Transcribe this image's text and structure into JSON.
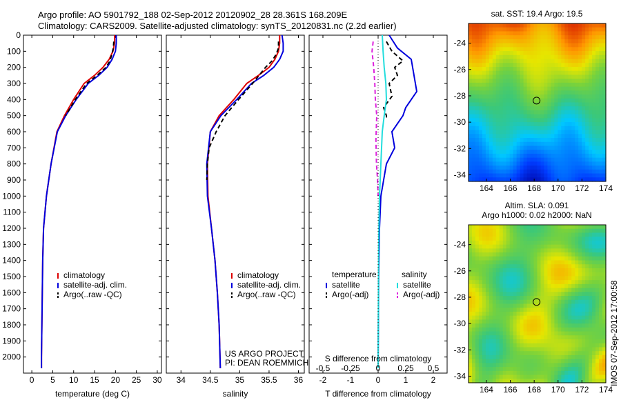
{
  "header": {
    "title_line1": "Argo profile: AO 5901792_188 02-Sep-2012 20120902_28 28.361S 168.209E",
    "title_line2": "Climatology: CARS2009. Satellite-adjusted climatology: synTS_20120831.nc (2.2d earlier)"
  },
  "colors": {
    "climatology": "#dd0000",
    "satellite": "#0000dd",
    "argo": "#000000",
    "salinity_satellite": "#22dddd",
    "salinity_argo": "#dd22dd"
  },
  "chart_data": [
    {
      "type": "line",
      "xlabel": "temperature (deg C)",
      "ylabel": "",
      "xlim": [
        -2,
        31
      ],
      "ylim": [
        2100,
        0
      ],
      "xticks": [
        0,
        5,
        10,
        15,
        20,
        25,
        30
      ],
      "yticks": [
        0,
        100,
        200,
        300,
        400,
        500,
        600,
        700,
        800,
        900,
        1000,
        1100,
        1200,
        1300,
        1400,
        1500,
        1600,
        1700,
        1800,
        1900,
        2000
      ],
      "legend_position": "lower-center",
      "legend": [
        "climatology",
        "satellite-adj. clim.",
        "Argo(..raw -QC)"
      ],
      "series": [
        {
          "name": "climatology",
          "x": [
            19.8,
            19.8,
            19.4,
            18.5,
            17,
            15,
            12.5,
            10,
            7.8,
            6,
            4.6,
            3.5,
            2.8,
            2.6,
            2.5,
            2.4,
            2.3,
            2.3
          ],
          "y": [
            0,
            50,
            100,
            150,
            200,
            250,
            300,
            400,
            500,
            600,
            800,
            1000,
            1200,
            1400,
            1600,
            1800,
            2000,
            2070
          ]
        },
        {
          "name": "satellite-adj. clim.",
          "x": [
            20.2,
            20.2,
            20,
            19.2,
            18,
            16,
            13.5,
            10.6,
            8.1,
            6.1,
            4.6,
            3.5,
            2.8,
            2.6,
            2.5,
            2.4,
            2.3,
            2.3
          ],
          "y": [
            0,
            50,
            100,
            150,
            200,
            250,
            300,
            400,
            500,
            600,
            800,
            1000,
            1200,
            1400,
            1600,
            1800,
            2000,
            2070
          ]
        },
        {
          "name": "Argo(..raw -QC)",
          "x": [
            19.6,
            19.5,
            19.1,
            18.7,
            17.7,
            15.6,
            13.1,
            10.4,
            8.1
          ],
          "y": [
            40,
            80,
            120,
            160,
            200,
            250,
            300,
            400,
            500
          ]
        }
      ]
    },
    {
      "type": "line",
      "xlabel": "salinity",
      "xlim": [
        33.75,
        36.1
      ],
      "ylim": [
        2100,
        0
      ],
      "xticks": [
        34,
        34.5,
        35,
        35.5,
        36
      ],
      "xtick_labels": [
        "34",
        "34.5",
        "35",
        "35.5",
        "36"
      ],
      "legend_position": "lower-right",
      "legend": [
        "climatology",
        "satellite-adj. clim.",
        "Argo(..raw -QC)"
      ],
      "annotation_line1": "US ARGO PROJECT",
      "annotation_line2": "PI: DEAN ROEMMICH",
      "series": [
        {
          "name": "climatology",
          "x": [
            35.68,
            35.68,
            35.66,
            35.6,
            35.5,
            35.32,
            35.12,
            34.9,
            34.65,
            34.5,
            34.45,
            34.46,
            34.52,
            34.58,
            34.62,
            34.65,
            34.67
          ],
          "y": [
            0,
            50,
            100,
            150,
            200,
            250,
            300,
            400,
            500,
            600,
            800,
            1000,
            1200,
            1400,
            1600,
            1800,
            2070
          ]
        },
        {
          "name": "satellite-adj. clim.",
          "x": [
            35.72,
            35.74,
            35.74,
            35.68,
            35.58,
            35.41,
            35.2,
            34.95,
            34.68,
            34.5,
            34.44,
            34.45,
            34.52,
            34.58,
            34.62,
            34.65,
            34.67
          ],
          "y": [
            0,
            50,
            100,
            150,
            200,
            250,
            300,
            400,
            500,
            600,
            800,
            1000,
            1200,
            1400,
            1600,
            1800,
            2070
          ]
        },
        {
          "name": "Argo(..raw -QC)",
          "x": [
            35.66,
            35.66,
            35.62,
            35.55,
            35.44,
            35.22,
            34.98,
            34.75,
            34.6,
            34.48,
            34.45,
            34.44
          ],
          "y": [
            40,
            80,
            120,
            160,
            200,
            300,
            400,
            500,
            600,
            700,
            800,
            900
          ]
        }
      ]
    },
    {
      "type": "line",
      "xlabel": "T difference from climatology",
      "xlabel2": "S difference from climatology",
      "xlim": [
        -2.5,
        2.5
      ],
      "ylim": [
        2100,
        0
      ],
      "xticks": [
        -2,
        -1,
        0,
        1,
        2
      ],
      "xtick_labels": [
        "-2",
        "-1",
        "0",
        "1",
        "2"
      ],
      "s_ticks": [
        -0.5,
        -0.25,
        0,
        0.25,
        0.5
      ],
      "s_tick_labels": [
        "-0.5",
        "-0.25",
        "0",
        "0.25",
        "0.5"
      ],
      "legend_position": "lower-center",
      "legend_temperature_header": "temperature",
      "legend_salinity_header": "salinity",
      "legend": [
        "satellite",
        "Argo(-adj)",
        "satellite",
        "Argo(-adj)"
      ],
      "series": [
        {
          "name": "temperature satellite",
          "x": [
            0.4,
            0.7,
            1.2,
            1.3,
            1.4,
            1.0,
            0.9,
            0.5,
            0.6,
            0.3,
            0.2,
            0.1,
            0.05,
            0.02,
            0.0
          ],
          "y": [
            0,
            80,
            150,
            250,
            350,
            450,
            500,
            600,
            700,
            800,
            900,
            1000,
            1200,
            1500,
            2070
          ]
        },
        {
          "name": "temperature Argo(-adj)",
          "x": [
            0.3,
            0.5,
            0.9,
            0.6,
            0.7,
            0.4,
            0.5,
            0.2,
            0.3,
            0.3
          ],
          "y": [
            40,
            100,
            160,
            200,
            250,
            300,
            380,
            450,
            500,
            520
          ]
        },
        {
          "name": "salinity satellite",
          "x": [
            0.15,
            0.18,
            0.22,
            0.28,
            0.3,
            0.22,
            0.15,
            0.1,
            0.05,
            0.02,
            0.0
          ],
          "y": [
            0,
            100,
            200,
            300,
            400,
            500,
            600,
            800,
            1000,
            1300,
            2070
          ]
        },
        {
          "name": "salinity Argo(-adj)",
          "x": [
            -0.18,
            -0.22,
            -0.16,
            -0.12,
            -0.1,
            -0.05,
            -0.08,
            -0.06,
            -0.02,
            0.0
          ],
          "y": [
            40,
            100,
            200,
            300,
            400,
            500,
            650,
            800,
            900,
            1000
          ]
        }
      ]
    },
    {
      "type": "heatmap",
      "title": "sat. SST: 19.4  Argo: 19.5",
      "xlim": [
        162.5,
        174
      ],
      "ylim": [
        -34.5,
        -22.5
      ],
      "xticks": [
        164,
        166,
        168,
        170,
        172,
        174
      ],
      "yticks": [
        -24,
        -26,
        -28,
        -30,
        -32,
        -34
      ],
      "marker": {
        "lon": 168.2,
        "lat": -28.36
      }
    },
    {
      "type": "heatmap",
      "title_line1": "Altim. SLA: 0.091",
      "title_line2": "Argo h1000: 0.02 h2000: NaN",
      "xlim": [
        162.5,
        174
      ],
      "ylim": [
        -34.5,
        -22.5
      ],
      "xticks": [
        164,
        166,
        168,
        170,
        172,
        174
      ],
      "yticks": [
        -24,
        -26,
        -28,
        -30,
        -32,
        -34
      ],
      "marker": {
        "lon": 168.2,
        "lat": -28.36
      }
    }
  ],
  "watermark": "IMOS 07-Sep-2012 17:00:58"
}
